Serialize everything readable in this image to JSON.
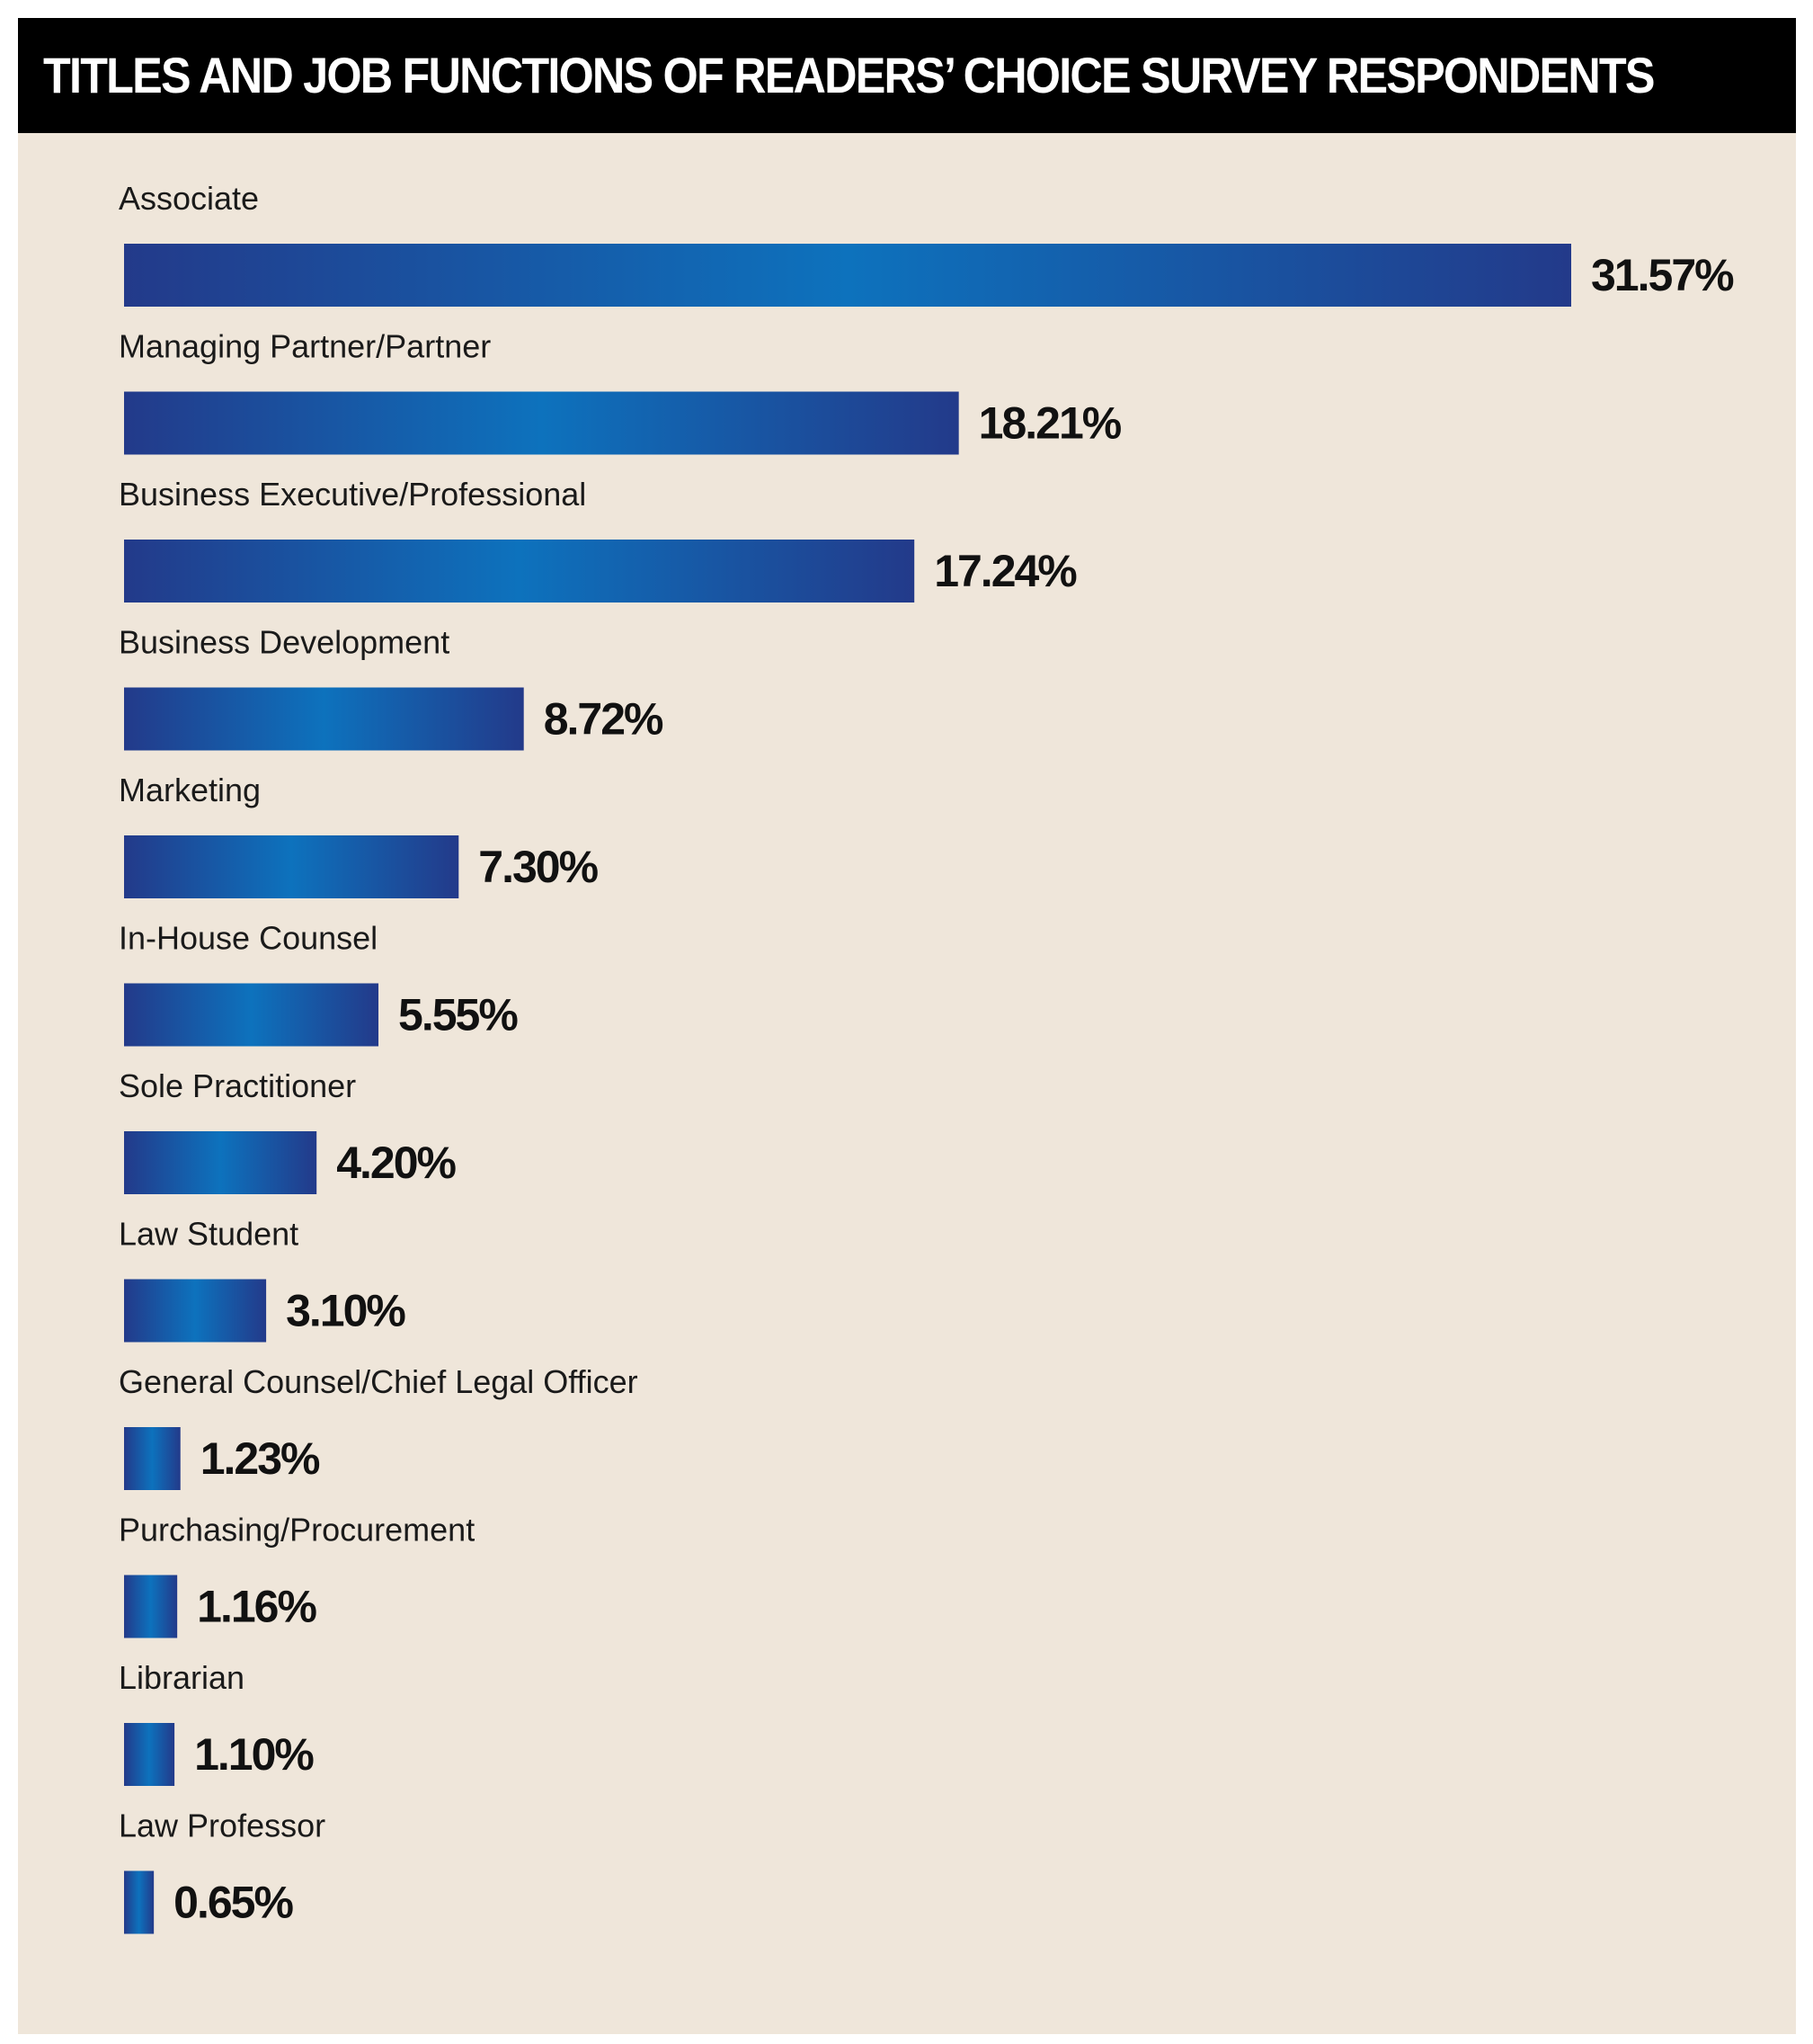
{
  "chart_data": {
    "type": "bar",
    "orientation": "horizontal",
    "title": "TITLES AND JOB FUNCTIONS OF READERS’ CHOICE SURVEY RESPONDENTS",
    "categories": [
      "Associate",
      "Managing Partner/Partner",
      "Business Executive/Professional",
      "Business Development",
      "Marketing",
      "In-House Counsel",
      "Sole Practitioner",
      "Law Student",
      "General Counsel/Chief Legal Officer",
      "Purchasing/Procurement",
      "Librarian",
      "Law Professor"
    ],
    "values": [
      31.57,
      18.21,
      17.24,
      8.72,
      7.3,
      5.55,
      4.2,
      3.1,
      1.23,
      1.16,
      1.1,
      0.65
    ],
    "value_labels": [
      "31.57%",
      "18.21%",
      "17.24%",
      "8.72%",
      "7.30%",
      "5.55%",
      "4.20%",
      "3.10%",
      "1.23%",
      "1.16%",
      "1.10%",
      "0.65%"
    ],
    "xlim": [
      0,
      31.57
    ],
    "grid": false,
    "legend": "none",
    "colors": {
      "bar_edge": "#233a8a",
      "bar_center": "#0d72bd",
      "background": "#efe6da",
      "title_bar": "#000000",
      "title_text": "#ffffff"
    }
  }
}
